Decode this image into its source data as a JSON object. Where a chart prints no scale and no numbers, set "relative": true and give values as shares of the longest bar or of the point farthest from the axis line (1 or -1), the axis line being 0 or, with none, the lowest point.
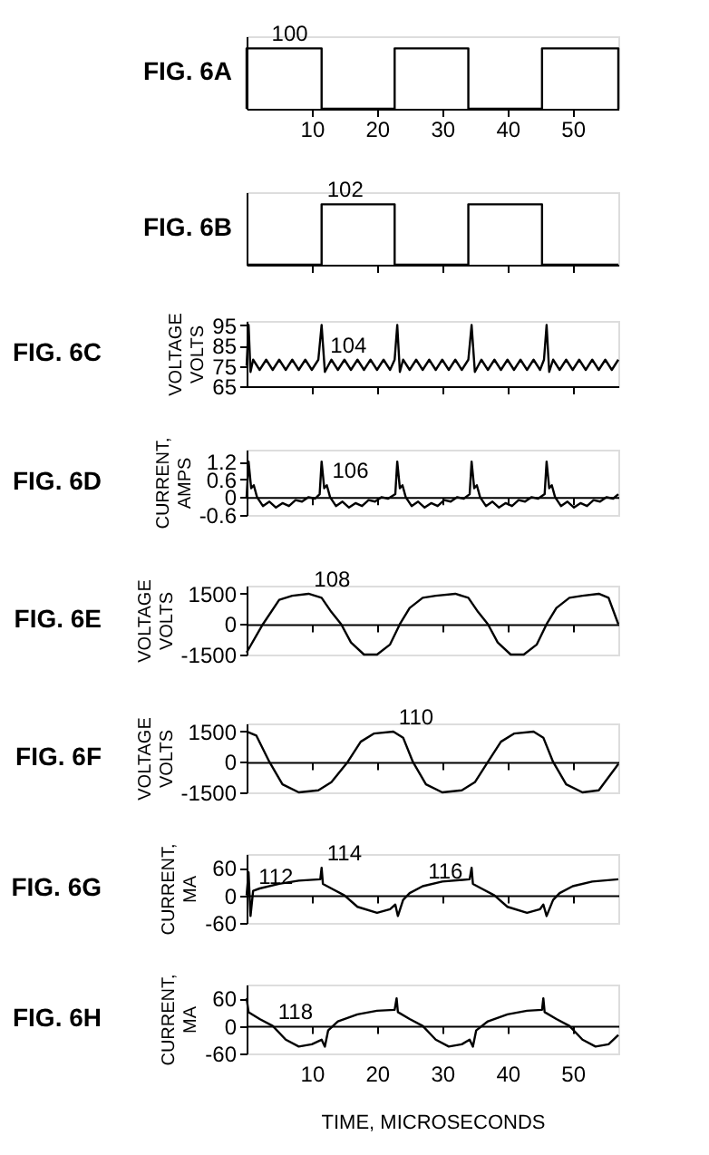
{
  "chart_data": [
    {
      "type": "line",
      "title": "FIG. 6A",
      "relative": true,
      "x": [
        0,
        0,
        11.5,
        11.5,
        22.7,
        22.7,
        34,
        34,
        45.3,
        45.3,
        57,
        57
      ],
      "values": [
        0,
        1,
        1,
        0,
        0,
        1,
        1,
        0,
        0,
        1,
        1,
        0
      ],
      "xlim": [
        0,
        57
      ],
      "xticks": [
        10,
        20,
        30,
        40,
        50
      ],
      "tick_labels": "x",
      "annotations": [
        {
          "text": "100",
          "x": 3,
          "y": 1
        }
      ]
    },
    {
      "type": "line",
      "title": "FIG. 6B",
      "relative": true,
      "x": [
        0,
        11.5,
        11.5,
        22.7,
        22.7,
        34,
        34,
        45.3,
        45.3,
        57
      ],
      "values": [
        0,
        0,
        1,
        1,
        0,
        0,
        1,
        1,
        0,
        0
      ],
      "xlim": [
        0,
        57
      ],
      "xticks": [
        10,
        20,
        30,
        40,
        50
      ],
      "tick_labels": false,
      "annotations": [
        {
          "text": "102",
          "x": 11.5,
          "y": 1
        }
      ]
    },
    {
      "type": "line",
      "title": "FIG. 6C",
      "ylabel": "VOLTAGE VOLTS",
      "x": [
        0,
        0.3,
        0.6,
        1,
        2,
        3,
        4,
        5,
        6,
        7,
        8,
        9,
        10,
        11,
        11.5,
        12,
        13,
        14,
        15,
        16,
        17,
        18,
        19,
        20,
        21,
        22,
        22.7,
        23.1,
        23.5,
        24,
        25,
        26,
        27,
        28,
        29,
        30,
        31,
        32,
        33,
        34,
        34.5,
        35,
        36,
        37,
        38,
        39,
        40,
        41,
        42,
        43,
        44,
        45,
        45.6,
        46,
        46.4,
        47,
        48,
        49,
        50,
        51,
        52,
        53,
        54,
        55,
        56,
        57
      ],
      "values": [
        75,
        95,
        72,
        78,
        73,
        78,
        73,
        78,
        73,
        78,
        73,
        78,
        73,
        78,
        95,
        72,
        78,
        73,
        78,
        73,
        78,
        73,
        78,
        73,
        78,
        73,
        78,
        95,
        72,
        78,
        73,
        78,
        73,
        78,
        73,
        78,
        73,
        78,
        73,
        78,
        95,
        72,
        78,
        73,
        78,
        73,
        78,
        73,
        78,
        73,
        78,
        73,
        78,
        95,
        72,
        78,
        73,
        78,
        73,
        78,
        73,
        78,
        73,
        78,
        73,
        78
      ],
      "xlim": [
        0,
        57
      ],
      "xticks": [
        10,
        20,
        30,
        40,
        50
      ],
      "ylim": [
        65,
        97
      ],
      "yticks": [
        65,
        75,
        85,
        95
      ],
      "tick_labels": "y",
      "annotations": [
        {
          "text": "104",
          "x": 12,
          "y": 78
        }
      ]
    },
    {
      "type": "line",
      "title": "FIG. 6D",
      "ylabel": "CURRENT, AMPS",
      "x": [
        0,
        0.3,
        0.7,
        1.1,
        1.6,
        2.5,
        3.5,
        4.5,
        5.5,
        6.5,
        7.5,
        8.5,
        9.5,
        10.5,
        11.2,
        11.5,
        11.9,
        12.3,
        12.8,
        13.7,
        14.7,
        15.7,
        16.7,
        17.7,
        18.7,
        19.7,
        20.7,
        21.7,
        22.8,
        23.1,
        23.5,
        23.9,
        24.4,
        25.3,
        26.3,
        27.3,
        28.3,
        29.3,
        30.3,
        31.3,
        32.3,
        33.3,
        34.2,
        34.5,
        34.9,
        35.3,
        35.8,
        36.7,
        37.7,
        38.7,
        39.7,
        40.7,
        41.7,
        42.7,
        43.7,
        44.7,
        45.7,
        46,
        46.4,
        46.8,
        47.3,
        48.2,
        49.2,
        50.2,
        51.2,
        52.2,
        53.2,
        54.2,
        55.2,
        56.2,
        57
      ],
      "values": [
        0,
        1.2,
        0.3,
        0.4,
        0,
        -0.3,
        -0.15,
        -0.35,
        -0.2,
        -0.3,
        -0.1,
        -0.15,
        0,
        -0.05,
        0.1,
        1.2,
        0.3,
        0.4,
        0,
        -0.3,
        -0.15,
        -0.35,
        -0.2,
        -0.3,
        -0.1,
        -0.15,
        0,
        -0.05,
        0.1,
        1.2,
        0.3,
        0.4,
        0,
        -0.3,
        -0.15,
        -0.35,
        -0.2,
        -0.3,
        -0.1,
        -0.15,
        0,
        -0.05,
        0.1,
        1.2,
        0.3,
        0.4,
        0,
        -0.3,
        -0.15,
        -0.35,
        -0.2,
        -0.3,
        -0.1,
        -0.15,
        0,
        -0.05,
        0.1,
        1.2,
        0.3,
        0.4,
        0,
        -0.3,
        -0.15,
        -0.35,
        -0.2,
        -0.3,
        -0.1,
        -0.15,
        0,
        -0.05,
        0.1
      ],
      "xlim": [
        0,
        57
      ],
      "xticks": [
        10,
        20,
        30,
        40,
        50
      ],
      "ylim": [
        -0.6,
        1.6
      ],
      "yticks": [
        -0.6,
        0,
        0.6,
        1.2
      ],
      "tick_labels": "y",
      "annotations": [
        {
          "text": "106",
          "x": 12.3,
          "y": 0.4
        }
      ]
    },
    {
      "type": "line",
      "title": "FIG. 6E",
      "ylabel": "VOLTAGE VOLTS",
      "x": [
        0,
        2.5,
        5,
        7,
        9.5,
        11.5,
        13,
        14.5,
        16,
        18,
        20,
        22,
        23.5,
        25,
        27,
        29,
        32,
        34,
        35.5,
        37,
        38.5,
        40.5,
        42.5,
        44.5,
        46,
        47.5,
        49.5,
        51.5,
        54,
        55.5,
        57
      ],
      "values": [
        -1400,
        0,
        1200,
        1400,
        1500,
        1300,
        600,
        0,
        -900,
        -1500,
        -1500,
        -1000,
        0,
        800,
        1300,
        1400,
        1500,
        1300,
        600,
        0,
        -900,
        -1500,
        -1500,
        -1000,
        0,
        800,
        1300,
        1400,
        1500,
        1300,
        0
      ],
      "xlim": [
        0,
        57
      ],
      "xticks": [
        10,
        20,
        30,
        40,
        50
      ],
      "ylim": [
        -1500,
        1900
      ],
      "yticks": [
        -1500,
        0,
        1500
      ],
      "tick_labels": "y",
      "annotations": [
        {
          "text": "108",
          "x": 9.5,
          "y": 1500
        }
      ]
    },
    {
      "type": "line",
      "title": "FIG. 6F",
      "ylabel": "VOLTAGE VOLTS",
      "x": [
        0,
        1.5,
        3.5,
        5.5,
        8,
        11,
        13,
        15.5,
        17.5,
        19.5,
        22.5,
        24,
        25.5,
        27.5,
        30,
        33,
        35,
        37,
        39,
        41,
        44,
        45.5,
        47,
        49,
        51.5,
        54,
        57
      ],
      "values": [
        1500,
        1300,
        0,
        -1100,
        -1500,
        -1400,
        -1000,
        0,
        1000,
        1400,
        1500,
        1200,
        0,
        -1100,
        -1500,
        -1400,
        -1000,
        0,
        1000,
        1400,
        1500,
        1200,
        0,
        -1100,
        -1500,
        -1400,
        -100
      ],
      "xlim": [
        0,
        57
      ],
      "xticks": [
        10,
        20,
        30,
        40,
        50
      ],
      "ylim": [
        -1500,
        1900
      ],
      "yticks": [
        -1500,
        0,
        1500
      ],
      "tick_labels": "y",
      "annotations": [
        {
          "text": "110",
          "x": 22.5,
          "y": 1500
        }
      ]
    },
    {
      "type": "line",
      "title": "FIG. 6G",
      "ylabel": "CURRENT, MA",
      "x": [
        0,
        0.3,
        0.6,
        1,
        2,
        5,
        8,
        11.3,
        11.5,
        11.7,
        13,
        15,
        17,
        20,
        22,
        22.8,
        23.2,
        24,
        25,
        27,
        30,
        34.2,
        34.5,
        34.7,
        36,
        38,
        40,
        43,
        45,
        45.5,
        46,
        47,
        48,
        50,
        53,
        57
      ],
      "values": [
        0,
        50,
        -45,
        10,
        15,
        25,
        32,
        35,
        60,
        25,
        15,
        0,
        -25,
        -38,
        -30,
        -20,
        -45,
        -10,
        5,
        20,
        30,
        35,
        60,
        25,
        15,
        0,
        -25,
        -38,
        -30,
        -20,
        -45,
        -10,
        5,
        20,
        30,
        35
      ],
      "xlim": [
        0,
        57
      ],
      "xticks": [
        10,
        20,
        30,
        40,
        50
      ],
      "ylim": [
        -60,
        90
      ],
      "yticks": [
        -60,
        0,
        60
      ],
      "tick_labels": "y",
      "annotations": [
        {
          "text": "112",
          "x": 1,
          "y": 10
        },
        {
          "text": "114",
          "x": 11.5,
          "y": 60
        },
        {
          "text": "116",
          "x": 27,
          "y": 20
        }
      ]
    },
    {
      "type": "line",
      "title": "FIG. 6H",
      "ylabel": "CURRENT, MA",
      "xlabel": "TIME, MICROSECONDS",
      "x": [
        0,
        0.3,
        2,
        4,
        6,
        8,
        10,
        11.5,
        12,
        12.5,
        14,
        17,
        20,
        22.7,
        23,
        23.2,
        25,
        27,
        29,
        31,
        33,
        34.2,
        34.7,
        35.2,
        37,
        40,
        43,
        45.3,
        45.5,
        45.7,
        47.5,
        49.5,
        51.5,
        53.5,
        55.5,
        57
      ],
      "values": [
        60,
        30,
        15,
        0,
        -30,
        -45,
        -40,
        -30,
        -45,
        -10,
        10,
        25,
        33,
        35,
        60,
        30,
        15,
        0,
        -30,
        -45,
        -40,
        -30,
        -45,
        -10,
        10,
        25,
        33,
        35,
        60,
        30,
        15,
        0,
        -30,
        -45,
        -40,
        -20
      ],
      "xlim": [
        0,
        57
      ],
      "xticks": [
        10,
        20,
        30,
        40,
        50
      ],
      "ylim": [
        -60,
        90
      ],
      "yticks": [
        -60,
        0,
        60
      ],
      "annotations": [
        {
          "text": "118",
          "x": 4,
          "y": 0
        }
      ]
    }
  ]
}
